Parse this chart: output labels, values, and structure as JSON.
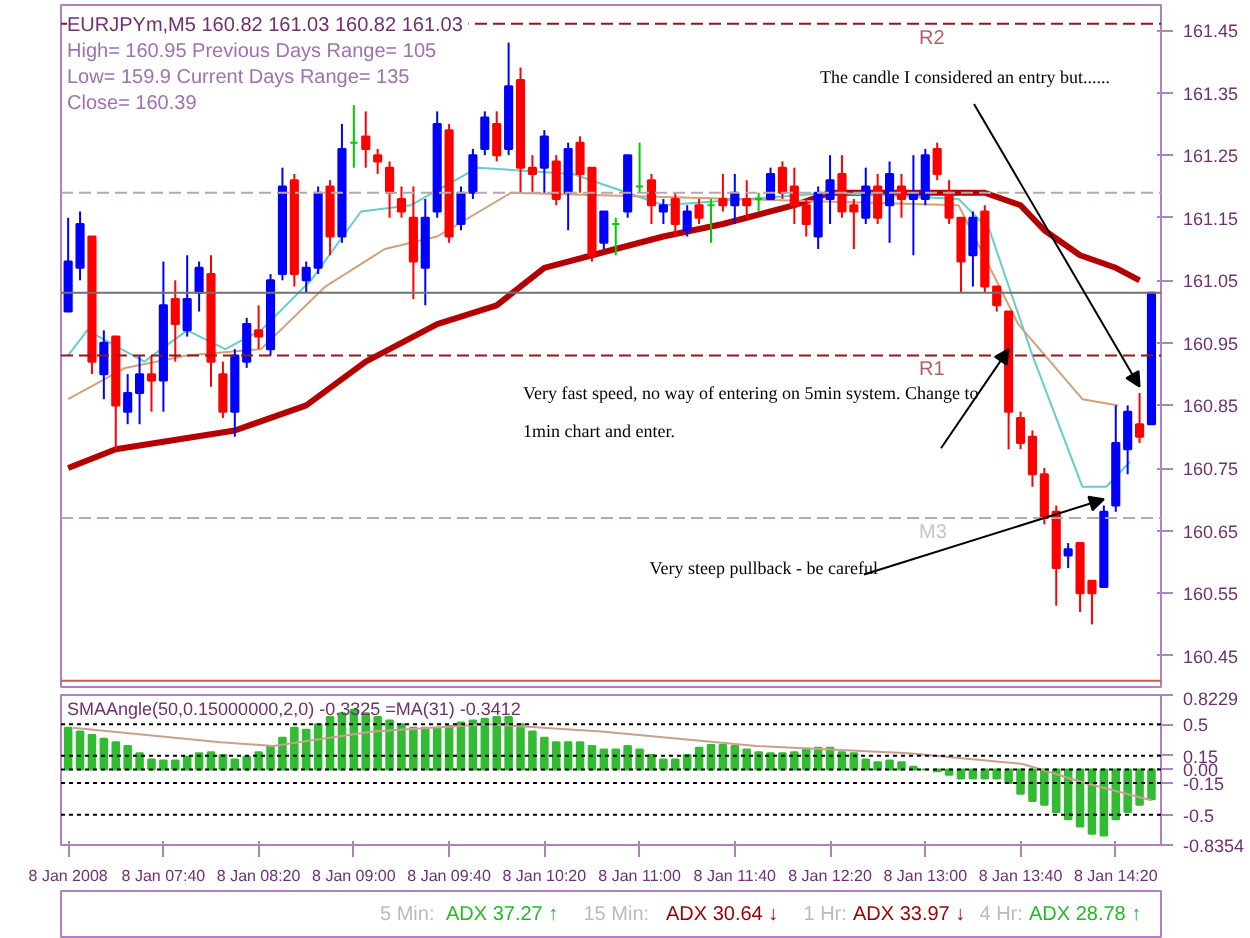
{
  "chart_data": [
    {
      "type": "candlestick",
      "title": "EURJPYm,M5  160.82 161.03 160.82 161.03",
      "annotations": [
        "High= 160.95   Previous Days Range= 105",
        "Low= 159.9   Current Days Range= 135",
        "Close= 160.39",
        {
          "text": "The candle I considered an entry but......",
          "x": "2008-01-08T14:30",
          "y": 160.88
        },
        {
          "text": "Very fast speed, no way of entering on 5min system. Change to\n1min chart and enter.",
          "x": "2008-01-08T13:35",
          "y": 160.94
        },
        {
          "text": "Very steep pullback - be careful",
          "x": "2008-01-08T14:15",
          "y": 160.7
        }
      ],
      "x": [
        "2008-01-08T07:00",
        "2008-01-08T07:05",
        "2008-01-08T07:10",
        "2008-01-08T07:15",
        "2008-01-08T07:20",
        "2008-01-08T07:25",
        "2008-01-08T07:30",
        "2008-01-08T07:35",
        "2008-01-08T07:40",
        "2008-01-08T07:45",
        "2008-01-08T07:50",
        "2008-01-08T07:55",
        "2008-01-08T08:00",
        "2008-01-08T08:05",
        "2008-01-08T08:10",
        "2008-01-08T08:15",
        "2008-01-08T08:20",
        "2008-01-08T08:25",
        "2008-01-08T08:30",
        "2008-01-08T08:35",
        "2008-01-08T08:40",
        "2008-01-08T08:45",
        "2008-01-08T08:50",
        "2008-01-08T08:55",
        "2008-01-08T09:00",
        "2008-01-08T09:05",
        "2008-01-08T09:10",
        "2008-01-08T09:15",
        "2008-01-08T09:20",
        "2008-01-08T09:25",
        "2008-01-08T09:30",
        "2008-01-08T09:35",
        "2008-01-08T09:40",
        "2008-01-08T09:45",
        "2008-01-08T09:50",
        "2008-01-08T09:55",
        "2008-01-08T10:00",
        "2008-01-08T10:05",
        "2008-01-08T10:10",
        "2008-01-08T10:15",
        "2008-01-08T10:20",
        "2008-01-08T10:25",
        "2008-01-08T10:30",
        "2008-01-08T10:35",
        "2008-01-08T10:40",
        "2008-01-08T10:45",
        "2008-01-08T10:50",
        "2008-01-08T10:55",
        "2008-01-08T11:00",
        "2008-01-08T11:05",
        "2008-01-08T11:10",
        "2008-01-08T11:15",
        "2008-01-08T11:20",
        "2008-01-08T11:25",
        "2008-01-08T11:30",
        "2008-01-08T11:35",
        "2008-01-08T11:40",
        "2008-01-08T11:45",
        "2008-01-08T11:50",
        "2008-01-08T11:55",
        "2008-01-08T12:00",
        "2008-01-08T12:05",
        "2008-01-08T12:10",
        "2008-01-08T12:15",
        "2008-01-08T12:20",
        "2008-01-08T12:25",
        "2008-01-08T12:30",
        "2008-01-08T12:35",
        "2008-01-08T12:40",
        "2008-01-08T12:45",
        "2008-01-08T12:50",
        "2008-01-08T12:55",
        "2008-01-08T13:00",
        "2008-01-08T13:05",
        "2008-01-08T13:10",
        "2008-01-08T13:15",
        "2008-01-08T13:20",
        "2008-01-08T13:25",
        "2008-01-08T13:30",
        "2008-01-08T13:35",
        "2008-01-08T13:40",
        "2008-01-08T13:45",
        "2008-01-08T13:50",
        "2008-01-08T13:55",
        "2008-01-08T14:00",
        "2008-01-08T14:05",
        "2008-01-08T14:10",
        "2008-01-08T14:15",
        "2008-01-08T14:20",
        "2008-01-08T14:25",
        "2008-01-08T14:30",
        "2008-01-08T14:35"
      ],
      "ohlc": [
        [
          161.0,
          161.15,
          161.0,
          161.08
        ],
        [
          161.07,
          161.16,
          161.05,
          161.14
        ],
        [
          161.12,
          161.12,
          160.9,
          160.92
        ],
        [
          160.9,
          160.97,
          160.86,
          160.95
        ],
        [
          160.96,
          160.96,
          160.78,
          160.85
        ],
        [
          160.84,
          160.9,
          160.82,
          160.87
        ],
        [
          160.87,
          160.93,
          160.82,
          160.9
        ],
        [
          160.9,
          160.93,
          160.84,
          160.89
        ],
        [
          160.89,
          161.08,
          160.84,
          161.01
        ],
        [
          161.02,
          161.05,
          160.92,
          160.98
        ],
        [
          160.97,
          161.09,
          160.96,
          161.02
        ],
        [
          161.03,
          161.08,
          161.0,
          161.07
        ],
        [
          161.06,
          161.09,
          160.88,
          160.92
        ],
        [
          160.9,
          160.92,
          160.83,
          160.84
        ],
        [
          160.84,
          160.94,
          160.8,
          160.93
        ],
        [
          160.92,
          160.99,
          160.91,
          160.98
        ],
        [
          160.97,
          161.01,
          160.94,
          160.96
        ],
        [
          160.94,
          161.06,
          160.93,
          161.05
        ],
        [
          161.06,
          161.23,
          161.05,
          161.2
        ],
        [
          161.21,
          161.22,
          161.04,
          161.06
        ],
        [
          161.05,
          161.08,
          161.03,
          161.07
        ],
        [
          161.07,
          161.2,
          161.06,
          161.19
        ],
        [
          161.2,
          161.21,
          161.09,
          161.12
        ],
        [
          161.12,
          161.3,
          161.11,
          161.26
        ],
        [
          161.27,
          161.33,
          161.23,
          161.27
        ],
        [
          161.28,
          161.32,
          161.23,
          161.26
        ],
        [
          161.25,
          161.26,
          161.22,
          161.24
        ],
        [
          161.23,
          161.24,
          161.15,
          161.19
        ],
        [
          161.18,
          161.2,
          161.15,
          161.16
        ],
        [
          161.15,
          161.2,
          161.02,
          161.08
        ],
        [
          161.07,
          161.18,
          161.01,
          161.15
        ],
        [
          161.16,
          161.32,
          161.15,
          161.3
        ],
        [
          161.29,
          161.3,
          161.11,
          161.12
        ],
        [
          161.14,
          161.2,
          161.13,
          161.19
        ],
        [
          161.19,
          161.26,
          161.18,
          161.25
        ],
        [
          161.26,
          161.32,
          161.25,
          161.31
        ],
        [
          161.3,
          161.32,
          161.24,
          161.25
        ],
        [
          161.26,
          161.43,
          161.25,
          161.36
        ],
        [
          161.37,
          161.39,
          161.19,
          161.23
        ],
        [
          161.23,
          161.25,
          161.19,
          161.22
        ],
        [
          161.23,
          161.29,
          161.19,
          161.28
        ],
        [
          161.24,
          161.25,
          161.17,
          161.18
        ],
        [
          161.19,
          161.27,
          161.13,
          161.26
        ],
        [
          161.27,
          161.28,
          161.19,
          161.22
        ],
        [
          161.23,
          161.23,
          161.08,
          161.09
        ],
        [
          161.11,
          161.16,
          161.1,
          161.16
        ],
        [
          161.14,
          161.15,
          161.09,
          161.14
        ],
        [
          161.16,
          161.25,
          161.15,
          161.25
        ],
        [
          161.2,
          161.27,
          161.19,
          161.2
        ],
        [
          161.21,
          161.22,
          161.14,
          161.17
        ],
        [
          161.16,
          161.18,
          161.14,
          161.17
        ],
        [
          161.18,
          161.19,
          161.12,
          161.14
        ],
        [
          161.13,
          161.17,
          161.12,
          161.16
        ],
        [
          161.17,
          161.18,
          161.14,
          161.15
        ],
        [
          161.17,
          161.18,
          161.11,
          161.17
        ],
        [
          161.18,
          161.22,
          161.16,
          161.17
        ],
        [
          161.17,
          161.22,
          161.14,
          161.19
        ],
        [
          161.18,
          161.21,
          161.15,
          161.17
        ],
        [
          161.18,
          161.19,
          161.16,
          161.18
        ],
        [
          161.18,
          161.23,
          161.18,
          161.22
        ],
        [
          161.23,
          161.24,
          161.18,
          161.19
        ],
        [
          161.2,
          161.23,
          161.14,
          161.17
        ],
        [
          161.17,
          161.18,
          161.12,
          161.14
        ],
        [
          161.12,
          161.2,
          161.1,
          161.19
        ],
        [
          161.18,
          161.25,
          161.14,
          161.21
        ],
        [
          161.22,
          161.25,
          161.15,
          161.16
        ],
        [
          161.17,
          161.18,
          161.1,
          161.16
        ],
        [
          161.15,
          161.23,
          161.14,
          161.2
        ],
        [
          161.2,
          161.22,
          161.14,
          161.15
        ],
        [
          161.17,
          161.24,
          161.11,
          161.22
        ],
        [
          161.2,
          161.22,
          161.15,
          161.18
        ],
        [
          161.18,
          161.25,
          161.09,
          161.19
        ],
        [
          161.18,
          161.26,
          161.17,
          161.25
        ],
        [
          161.26,
          161.27,
          161.21,
          161.22
        ],
        [
          161.19,
          161.21,
          161.14,
          161.15
        ],
        [
          161.15,
          161.15,
          161.03,
          161.08
        ],
        [
          161.09,
          161.16,
          161.04,
          161.15
        ],
        [
          161.16,
          161.17,
          161.03,
          161.04
        ],
        [
          161.04,
          161.04,
          161.0,
          161.01
        ],
        [
          161.0,
          161.0,
          160.78,
          160.84
        ],
        [
          160.83,
          160.84,
          160.78,
          160.79
        ],
        [
          160.8,
          160.81,
          160.72,
          160.74
        ],
        [
          160.74,
          160.75,
          160.66,
          160.67
        ],
        [
          160.68,
          160.69,
          160.53,
          160.59
        ],
        [
          160.61,
          160.63,
          160.59,
          160.62
        ],
        [
          160.63,
          160.63,
          160.52,
          160.55
        ],
        [
          160.57,
          160.57,
          160.5,
          160.55
        ],
        [
          160.56,
          160.69,
          160.56,
          160.68
        ],
        [
          160.69,
          160.85,
          160.68,
          160.79
        ],
        [
          160.78,
          160.85,
          160.74,
          160.84
        ],
        [
          160.82,
          160.87,
          160.79,
          160.8
        ],
        [
          160.82,
          161.03,
          160.82,
          161.03
        ]
      ],
      "colors": [
        "#0000ff",
        "#0000ff",
        "#ff0000",
        "#0000ff",
        "#ff0000",
        "#0000ff",
        "#0000ff",
        "#ff0000",
        "#0000ff",
        "#ff0000",
        "#0000ff",
        "#0000ff",
        "#ff0000",
        "#ff0000",
        "#0000ff",
        "#0000ff",
        "#ff0000",
        "#0000ff",
        "#0000ff",
        "#ff0000",
        "#0000ff",
        "#0000ff",
        "#ff0000",
        "#0000ff",
        "#00cc00",
        "#ff0000",
        "#ff0000",
        "#ff0000",
        "#ff0000",
        "#ff0000",
        "#0000ff",
        "#0000ff",
        "#ff0000",
        "#0000ff",
        "#0000ff",
        "#0000ff",
        "#ff0000",
        "#0000ff",
        "#ff0000",
        "#ff0000",
        "#0000ff",
        "#ff0000",
        "#0000ff",
        "#ff0000",
        "#ff0000",
        "#0000ff",
        "#00cc00",
        "#0000ff",
        "#00cc00",
        "#ff0000",
        "#0000ff",
        "#ff0000",
        "#0000ff",
        "#ff0000",
        "#00cc00",
        "#ff0000",
        "#0000ff",
        "#ff0000",
        "#00cc00",
        "#0000ff",
        "#ff0000",
        "#ff0000",
        "#ff0000",
        "#0000ff",
        "#0000ff",
        "#ff0000",
        "#ff0000",
        "#0000ff",
        "#ff0000",
        "#0000ff",
        "#ff0000",
        "#0000ff",
        "#0000ff",
        "#ff0000",
        "#ff0000",
        "#ff0000",
        "#0000ff",
        "#ff0000",
        "#ff0000",
        "#ff0000",
        "#ff0000",
        "#ff0000",
        "#ff0000",
        "#ff0000",
        "#0000ff",
        "#ff0000",
        "#ff0000",
        "#0000ff",
        "#0000ff",
        "#0000ff",
        "#ff0000",
        "#0000ff"
      ],
      "series": [
        {
          "type": "line",
          "color": "#b40000",
          "x": [
            "2008-01-08T07:00",
            "2008-01-08T07:20",
            "2008-01-08T08:10",
            "2008-01-08T08:40",
            "2008-01-08T09:05",
            "2008-01-08T09:35",
            "2008-01-08T10:00",
            "2008-01-08T10:20",
            "2008-01-08T10:40",
            "2008-01-08T11:10",
            "2008-01-08T11:35",
            "2008-01-08T12:05",
            "2008-01-08T12:20",
            "2008-01-08T13:00",
            "2008-01-08T13:25",
            "2008-01-08T13:40",
            "2008-01-08T13:50",
            "2008-01-08T14:05",
            "2008-01-08T14:20",
            "2008-01-08T14:30"
          ],
          "values": [
            160.75,
            160.78,
            160.81,
            160.85,
            160.92,
            160.98,
            161.01,
            161.07,
            161.09,
            161.12,
            161.14,
            161.17,
            161.19,
            161.19,
            161.19,
            161.17,
            161.13,
            161.09,
            161.07,
            161.05
          ]
        },
        {
          "type": "line",
          "color": "#66cccc",
          "x": [
            "2008-01-08T07:00",
            "2008-01-08T07:08",
            "2008-01-08T07:32",
            "2008-01-08T07:50",
            "2008-01-08T08:06",
            "2008-01-08T08:21",
            "2008-01-08T08:42",
            "2008-01-08T09:03",
            "2008-01-08T09:24",
            "2008-01-08T09:52",
            "2008-01-08T10:32",
            "2008-01-08T11:10",
            "2008-01-08T12:21",
            "2008-01-08T13:14",
            "2008-01-08T13:27",
            "2008-01-08T13:45",
            "2008-01-08T14:06",
            "2008-01-08T14:16",
            "2008-01-08T14:26"
          ],
          "values": [
            160.93,
            160.97,
            160.92,
            160.97,
            160.94,
            160.97,
            161.05,
            161.16,
            161.17,
            161.23,
            161.22,
            161.17,
            161.19,
            161.18,
            161.13,
            160.93,
            160.72,
            160.72,
            160.76
          ]
        },
        {
          "type": "line",
          "color": "#d2a07a",
          "x": [
            "2008-01-08T07:00",
            "2008-01-08T07:24",
            "2008-01-08T07:50",
            "2008-01-08T08:21",
            "2008-01-08T08:48",
            "2008-01-08T09:13",
            "2008-01-08T09:35",
            "2008-01-08T10:06",
            "2008-01-08T13:14",
            "2008-01-08T13:39",
            "2008-01-08T14:06",
            "2008-01-08T14:21"
          ],
          "values": [
            160.86,
            160.91,
            160.93,
            160.94,
            161.04,
            161.1,
            161.12,
            161.19,
            161.17,
            160.98,
            160.86,
            160.85
          ]
        }
      ],
      "xlim": [
        "2008-01-08T06:57",
        "2008-01-08T14:39"
      ],
      "ylim": [
        160.4,
        161.49
      ],
      "yticks": [
        160.45,
        160.55,
        160.65,
        160.75,
        160.85,
        160.95,
        161.05,
        161.15,
        161.25,
        161.35,
        161.45
      ],
      "ref_lines": [
        {
          "axis": "y",
          "value": 161.46,
          "label": "R2",
          "color": "#8b1a1a",
          "line_style": "dashed"
        },
        {
          "axis": "y",
          "value": 161.19,
          "label": null,
          "color": "#b8a8a8",
          "line_style": "dashed"
        },
        {
          "axis": "y",
          "value": 161.03,
          "label": null,
          "color": "#707070",
          "line_style": "solid"
        },
        {
          "axis": "y",
          "value": 160.93,
          "label": "R1",
          "color": "#8b1a1a",
          "line_style": "dashed"
        },
        {
          "axis": "y",
          "value": 160.67,
          "label": "M3",
          "color": "#b8a8a8",
          "line_style": "dashed"
        },
        {
          "axis": "y",
          "value": 160.41,
          "label": null,
          "color": "#c86040",
          "line_style": "solid"
        }
      ],
      "tick_labels": "y",
      "grid": false
    },
    {
      "type": "bar",
      "title": "SMAAngle(50,0.15000000,2,0) -0.3325  =MA(31) -0.3412",
      "x": [
        "2008-01-08T07:00",
        "2008-01-08T07:05",
        "2008-01-08T07:10",
        "2008-01-08T07:15",
        "2008-01-08T07:20",
        "2008-01-08T07:25",
        "2008-01-08T07:30",
        "2008-01-08T07:35",
        "2008-01-08T07:40",
        "2008-01-08T07:45",
        "2008-01-08T07:50",
        "2008-01-08T07:55",
        "2008-01-08T08:00",
        "2008-01-08T08:05",
        "2008-01-08T08:10",
        "2008-01-08T08:15",
        "2008-01-08T08:20",
        "2008-01-08T08:25",
        "2008-01-08T08:30",
        "2008-01-08T08:35",
        "2008-01-08T08:40",
        "2008-01-08T08:45",
        "2008-01-08T08:50",
        "2008-01-08T08:55",
        "2008-01-08T09:00",
        "2008-01-08T09:05",
        "2008-01-08T09:10",
        "2008-01-08T09:15",
        "2008-01-08T09:20",
        "2008-01-08T09:25",
        "2008-01-08T09:30",
        "2008-01-08T09:35",
        "2008-01-08T09:40",
        "2008-01-08T09:45",
        "2008-01-08T09:50",
        "2008-01-08T09:55",
        "2008-01-08T10:00",
        "2008-01-08T10:05",
        "2008-01-08T10:10",
        "2008-01-08T10:15",
        "2008-01-08T10:20",
        "2008-01-08T10:25",
        "2008-01-08T10:30",
        "2008-01-08T10:35",
        "2008-01-08T10:40",
        "2008-01-08T10:45",
        "2008-01-08T10:50",
        "2008-01-08T10:55",
        "2008-01-08T11:00",
        "2008-01-08T11:05",
        "2008-01-08T11:10",
        "2008-01-08T11:15",
        "2008-01-08T11:20",
        "2008-01-08T11:25",
        "2008-01-08T11:30",
        "2008-01-08T11:35",
        "2008-01-08T11:40",
        "2008-01-08T11:45",
        "2008-01-08T11:50",
        "2008-01-08T11:55",
        "2008-01-08T12:00",
        "2008-01-08T12:05",
        "2008-01-08T12:10",
        "2008-01-08T12:15",
        "2008-01-08T12:20",
        "2008-01-08T12:25",
        "2008-01-08T12:30",
        "2008-01-08T12:35",
        "2008-01-08T12:40",
        "2008-01-08T12:45",
        "2008-01-08T12:50",
        "2008-01-08T12:55",
        "2008-01-08T13:00",
        "2008-01-08T13:05",
        "2008-01-08T13:10",
        "2008-01-08T13:15",
        "2008-01-08T13:20",
        "2008-01-08T13:25",
        "2008-01-08T13:30",
        "2008-01-08T13:35",
        "2008-01-08T13:40",
        "2008-01-08T13:45",
        "2008-01-08T13:50",
        "2008-01-08T13:55",
        "2008-01-08T14:00",
        "2008-01-08T14:05",
        "2008-01-08T14:10",
        "2008-01-08T14:15",
        "2008-01-08T14:20",
        "2008-01-08T14:25",
        "2008-01-08T14:30",
        "2008-01-08T14:35"
      ],
      "series": [
        {
          "type": "bar",
          "color": "#33bb33",
          "values": [
            0.46,
            0.42,
            0.38,
            0.34,
            0.3,
            0.26,
            0.18,
            0.11,
            0.1,
            0.1,
            0.14,
            0.18,
            0.19,
            0.16,
            0.11,
            0.14,
            0.19,
            0.26,
            0.35,
            0.46,
            0.44,
            0.5,
            0.58,
            0.62,
            0.66,
            0.62,
            0.58,
            0.54,
            0.5,
            0.46,
            0.46,
            0.46,
            0.48,
            0.52,
            0.54,
            0.56,
            0.58,
            0.58,
            0.5,
            0.42,
            0.35,
            0.3,
            0.3,
            0.3,
            0.26,
            0.22,
            0.22,
            0.26,
            0.22,
            0.16,
            0.11,
            0.11,
            0.16,
            0.24,
            0.27,
            0.27,
            0.26,
            0.22,
            0.19,
            0.18,
            0.18,
            0.19,
            0.23,
            0.24,
            0.24,
            0.19,
            0.18,
            0.11,
            0.08,
            0.1,
            0.08,
            0.03,
            0.0,
            -0.02,
            -0.06,
            -0.1,
            -0.1,
            -0.1,
            -0.1,
            -0.15,
            -0.27,
            -0.35,
            -0.39,
            -0.47,
            -0.55,
            -0.63,
            -0.71,
            -0.73,
            -0.55,
            -0.47,
            -0.39,
            -0.33
          ]
        },
        {
          "type": "line",
          "color": "#c8a090",
          "x": [
            "2008-01-08T07:02",
            "2008-01-08T08:04",
            "2008-01-08T08:26",
            "2008-01-08T09:08",
            "2008-01-08T09:56",
            "2008-01-08T10:44",
            "2008-01-08T11:49",
            "2008-01-08T12:53",
            "2008-01-08T13:41",
            "2008-01-08T14:07",
            "2008-01-08T14:35"
          ],
          "values": [
            0.46,
            0.3,
            0.26,
            0.42,
            0.5,
            0.42,
            0.26,
            0.18,
            0.06,
            -0.15,
            -0.34
          ]
        }
      ],
      "xlim": [
        "2008-01-08T06:57",
        "2008-01-08T14:39"
      ],
      "ylim": [
        -0.8354,
        0.8229
      ],
      "xticks": [
        {
          "value": "2008-01-08T07:00",
          "label": "8 Jan 2008"
        },
        {
          "value": "2008-01-08T07:40",
          "label": "8 Jan 07:40"
        },
        {
          "value": "2008-01-08T08:20",
          "label": "8 Jan 08:20"
        },
        {
          "value": "2008-01-08T09:00",
          "label": "8 Jan 09:00"
        },
        {
          "value": "2008-01-08T09:40",
          "label": "8 Jan 09:40"
        },
        {
          "value": "2008-01-08T10:20",
          "label": "8 Jan 10:20"
        },
        {
          "value": "2008-01-08T11:00",
          "label": "8 Jan 11:00"
        },
        {
          "value": "2008-01-08T11:40",
          "label": "8 Jan 11:40"
        },
        {
          "value": "2008-01-08T12:20",
          "label": "8 Jan 12:20"
        },
        {
          "value": "2008-01-08T13:00",
          "label": "8 Jan 13:00"
        },
        {
          "value": "2008-01-08T13:40",
          "label": "8 Jan 13:40"
        },
        {
          "value": "2008-01-08T14:20",
          "label": "8 Jan 14:20"
        }
      ],
      "yticks": [
        0.8229,
        0.5,
        0.15,
        {
          "value": 0,
          "label": "0.00"
        },
        -0.15,
        -0.5,
        -0.8354
      ],
      "ref_lines": [
        {
          "axis": "y",
          "value": 0.5,
          "label": null,
          "color": "#000000",
          "line_style": "dotted"
        },
        {
          "axis": "y",
          "value": 0.15,
          "label": null,
          "color": "#000000",
          "line_style": "dotted"
        },
        {
          "axis": "y",
          "value": 0,
          "label": null,
          "color": "#000000",
          "line_style": "dotted"
        },
        {
          "axis": "y",
          "value": -0.15,
          "label": null,
          "color": "#000000",
          "line_style": "dotted"
        },
        {
          "axis": "y",
          "value": -0.5,
          "label": null,
          "color": "#000000",
          "line_style": "dotted"
        }
      ],
      "grid": false
    },
    {
      "type": "other",
      "annotations": [
        "5 Min:",
        "ADX 37.27 ↑",
        "15 Min:",
        "ADX 30.64 ↓",
        "1 Hr:",
        "ADX 33.97 ↓",
        "4 Hr:",
        "ADX 28.78 ↑"
      ],
      "colors": [
        "#bbbbbb",
        "#22bb22",
        "#bbbbbb",
        "#990000",
        "#bbbbbb",
        "#990000",
        "#bbbbbb",
        "#22bb22"
      ]
    }
  ]
}
